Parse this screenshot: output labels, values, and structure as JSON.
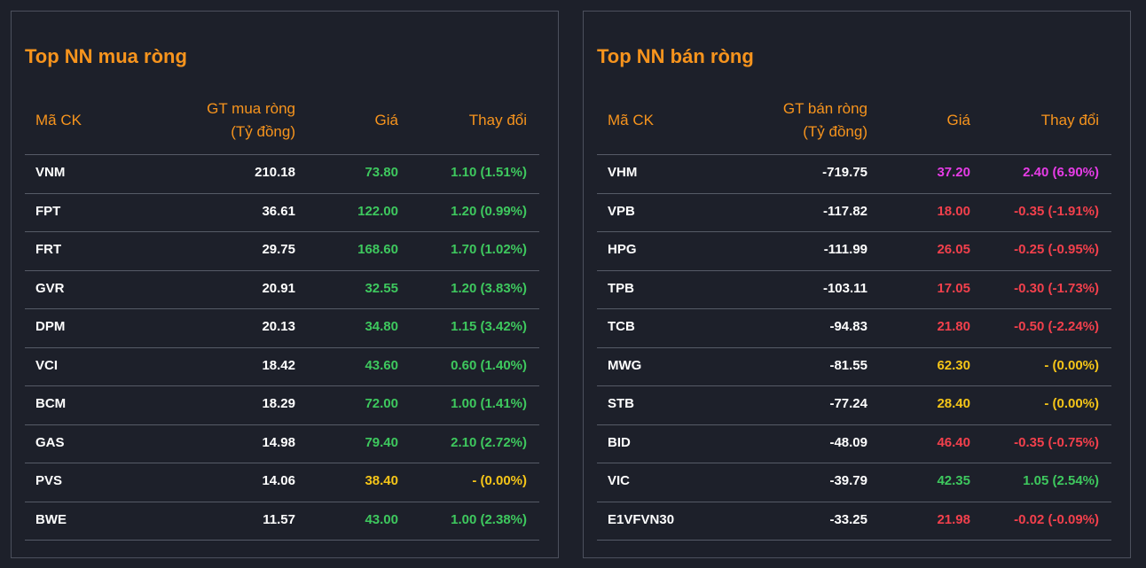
{
  "panels": [
    {
      "title": "Top NN mua ròng",
      "columns": [
        "Mã CK",
        [
          "GT mua ròng",
          "(Tỷ đồng)"
        ],
        "Giá",
        "Thay đổi"
      ],
      "rows": [
        {
          "cells": [
            "VNM",
            "210.18",
            "73.80",
            "1.10 (1.51%)"
          ],
          "color": "#3ec85e"
        },
        {
          "cells": [
            "FPT",
            "36.61",
            "122.00",
            "1.20 (0.99%)"
          ],
          "color": "#3ec85e"
        },
        {
          "cells": [
            "FRT",
            "29.75",
            "168.60",
            "1.70 (1.02%)"
          ],
          "color": "#3ec85e"
        },
        {
          "cells": [
            "GVR",
            "20.91",
            "32.55",
            "1.20 (3.83%)"
          ],
          "color": "#3ec85e"
        },
        {
          "cells": [
            "DPM",
            "20.13",
            "34.80",
            "1.15 (3.42%)"
          ],
          "color": "#3ec85e"
        },
        {
          "cells": [
            "VCI",
            "18.42",
            "43.60",
            "0.60 (1.40%)"
          ],
          "color": "#3ec85e"
        },
        {
          "cells": [
            "BCM",
            "18.29",
            "72.00",
            "1.00 (1.41%)"
          ],
          "color": "#3ec85e"
        },
        {
          "cells": [
            "GAS",
            "14.98",
            "79.40",
            "2.10 (2.72%)"
          ],
          "color": "#3ec85e"
        },
        {
          "cells": [
            "PVS",
            "14.06",
            "38.40",
            "- (0.00%)"
          ],
          "color": "#f5c518"
        },
        {
          "cells": [
            "BWE",
            "11.57",
            "43.00",
            "1.00 (2.38%)"
          ],
          "color": "#3ec85e"
        }
      ]
    },
    {
      "title": "Top NN bán ròng",
      "columns": [
        "Mã CK",
        [
          "GT bán ròng",
          "(Tỷ đồng)"
        ],
        "Giá",
        "Thay đổi"
      ],
      "rows": [
        {
          "cells": [
            "VHM",
            "-719.75",
            "37.20",
            "2.40 (6.90%)"
          ],
          "color": "#e63ce6"
        },
        {
          "cells": [
            "VPB",
            "-117.82",
            "18.00",
            "-0.35 (-1.91%)"
          ],
          "color": "#f2404c"
        },
        {
          "cells": [
            "HPG",
            "-111.99",
            "26.05",
            "-0.25 (-0.95%)"
          ],
          "color": "#f2404c"
        },
        {
          "cells": [
            "TPB",
            "-103.11",
            "17.05",
            "-0.30 (-1.73%)"
          ],
          "color": "#f2404c"
        },
        {
          "cells": [
            "TCB",
            "-94.83",
            "21.80",
            "-0.50 (-2.24%)"
          ],
          "color": "#f2404c"
        },
        {
          "cells": [
            "MWG",
            "-81.55",
            "62.30",
            "- (0.00%)"
          ],
          "color": "#f5c518"
        },
        {
          "cells": [
            "STB",
            "-77.24",
            "28.40",
            "- (0.00%)"
          ],
          "color": "#f5c518"
        },
        {
          "cells": [
            "BID",
            "-48.09",
            "46.40",
            "-0.35 (-0.75%)"
          ],
          "color": "#f2404c"
        },
        {
          "cells": [
            "VIC",
            "-39.79",
            "42.35",
            "1.05 (2.54%)"
          ],
          "color": "#3ec85e"
        },
        {
          "cells": [
            "E1VFVN30",
            "-33.25",
            "21.98",
            "-0.02 (-0.09%)"
          ],
          "color": "#f2404c"
        }
      ]
    }
  ]
}
